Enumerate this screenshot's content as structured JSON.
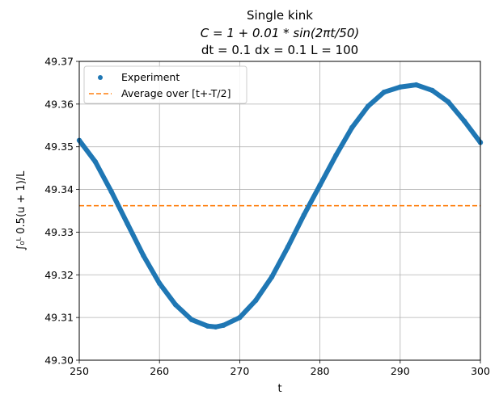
{
  "chart_data": {
    "type": "scatter",
    "title_lines": [
      "Single kink",
      "C = 1 + 0.01 * sin(2πt/50)",
      "dt = 0.1 dx = 0.1 L = 100"
    ],
    "xlabel": "t",
    "ylabel": "∫₀ᴸ 0.5(u + 1)/L",
    "xlim": [
      250,
      300
    ],
    "ylim": [
      49.3,
      49.37
    ],
    "xticks": [
      250,
      260,
      270,
      280,
      290,
      300
    ],
    "xtick_labels": [
      "250",
      "260",
      "270",
      "280",
      "290",
      "300"
    ],
    "yticks": [
      49.3,
      49.31,
      49.32,
      49.33,
      49.34,
      49.35,
      49.36,
      49.37
    ],
    "ytick_labels": [
      "49.30",
      "49.31",
      "49.32",
      "49.33",
      "49.34",
      "49.35",
      "49.36",
      "49.37"
    ],
    "grid": true,
    "legend_position": "top-left",
    "series": [
      {
        "name": "Experiment",
        "style": "points",
        "color": "#1f77b4",
        "x": [
          250,
          252,
          254,
          256,
          258,
          260,
          262,
          264,
          266,
          267,
          268,
          270,
          272,
          274,
          276,
          278,
          280,
          282,
          284,
          286,
          288,
          290,
          292,
          294,
          296,
          298,
          300
        ],
        "y": [
          49.3515,
          49.3465,
          49.3395,
          49.332,
          49.3245,
          49.318,
          49.313,
          49.3095,
          49.308,
          49.3078,
          49.3082,
          49.31,
          49.314,
          49.3195,
          49.3265,
          49.334,
          49.341,
          49.348,
          49.3545,
          49.3595,
          49.3628,
          49.364,
          49.3645,
          49.3632,
          49.3605,
          49.356,
          49.351
        ]
      },
      {
        "name": "Average over [t+-T/2]",
        "style": "dashed",
        "color": "#ff7f0e",
        "x": [
          250,
          300
        ],
        "y": [
          49.3362,
          49.3362
        ]
      }
    ]
  }
}
